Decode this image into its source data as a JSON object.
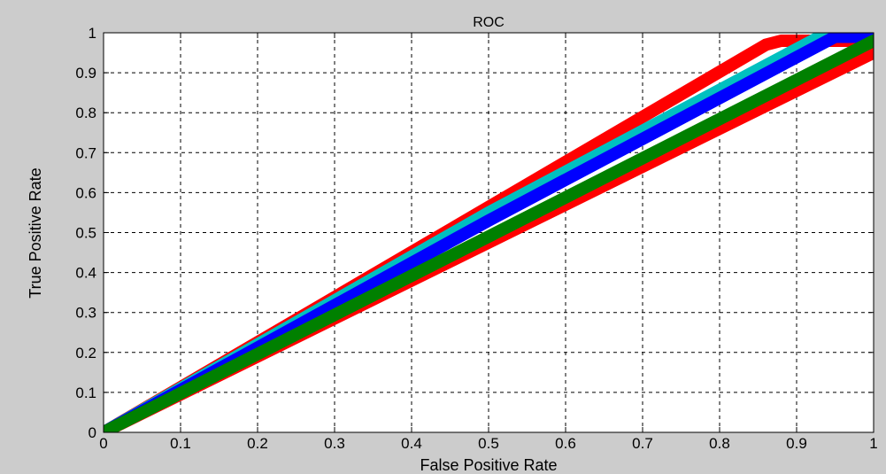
{
  "chart_data": {
    "type": "line",
    "title": "ROC",
    "xlabel": "False Positive Rate",
    "ylabel": "True Positive Rate",
    "xlim": [
      0,
      1
    ],
    "ylim": [
      0,
      1
    ],
    "xticks": [
      "0",
      "0.1",
      "0.2",
      "0.3",
      "0.4",
      "0.5",
      "0.6",
      "0.7",
      "0.8",
      "0.9",
      "1"
    ],
    "yticks": [
      "0",
      "0.1",
      "0.2",
      "0.3",
      "0.4",
      "0.5",
      "0.6",
      "0.7",
      "0.8",
      "0.9",
      "1"
    ],
    "grid": true,
    "legend": false,
    "series": [
      {
        "color": "#ff0000",
        "x": [
          0,
          0.86,
          0.88,
          1
        ],
        "y": [
          0,
          0.97,
          0.98,
          0.98
        ]
      },
      {
        "color": "#ff0000",
        "x": [
          0,
          1
        ],
        "y": [
          0,
          0.95
        ]
      },
      {
        "color": "#00c0c0",
        "x": [
          0,
          0.5,
          0.93,
          1
        ],
        "y": [
          0,
          0.55,
          0.99,
          0.99
        ]
      },
      {
        "color": "#0000ff",
        "x": [
          0,
          0.5,
          0.95,
          1
        ],
        "y": [
          0,
          0.53,
          0.99,
          0.99
        ]
      },
      {
        "color": "#008000",
        "x": [
          0,
          1
        ],
        "y": [
          0,
          0.98
        ]
      }
    ]
  }
}
